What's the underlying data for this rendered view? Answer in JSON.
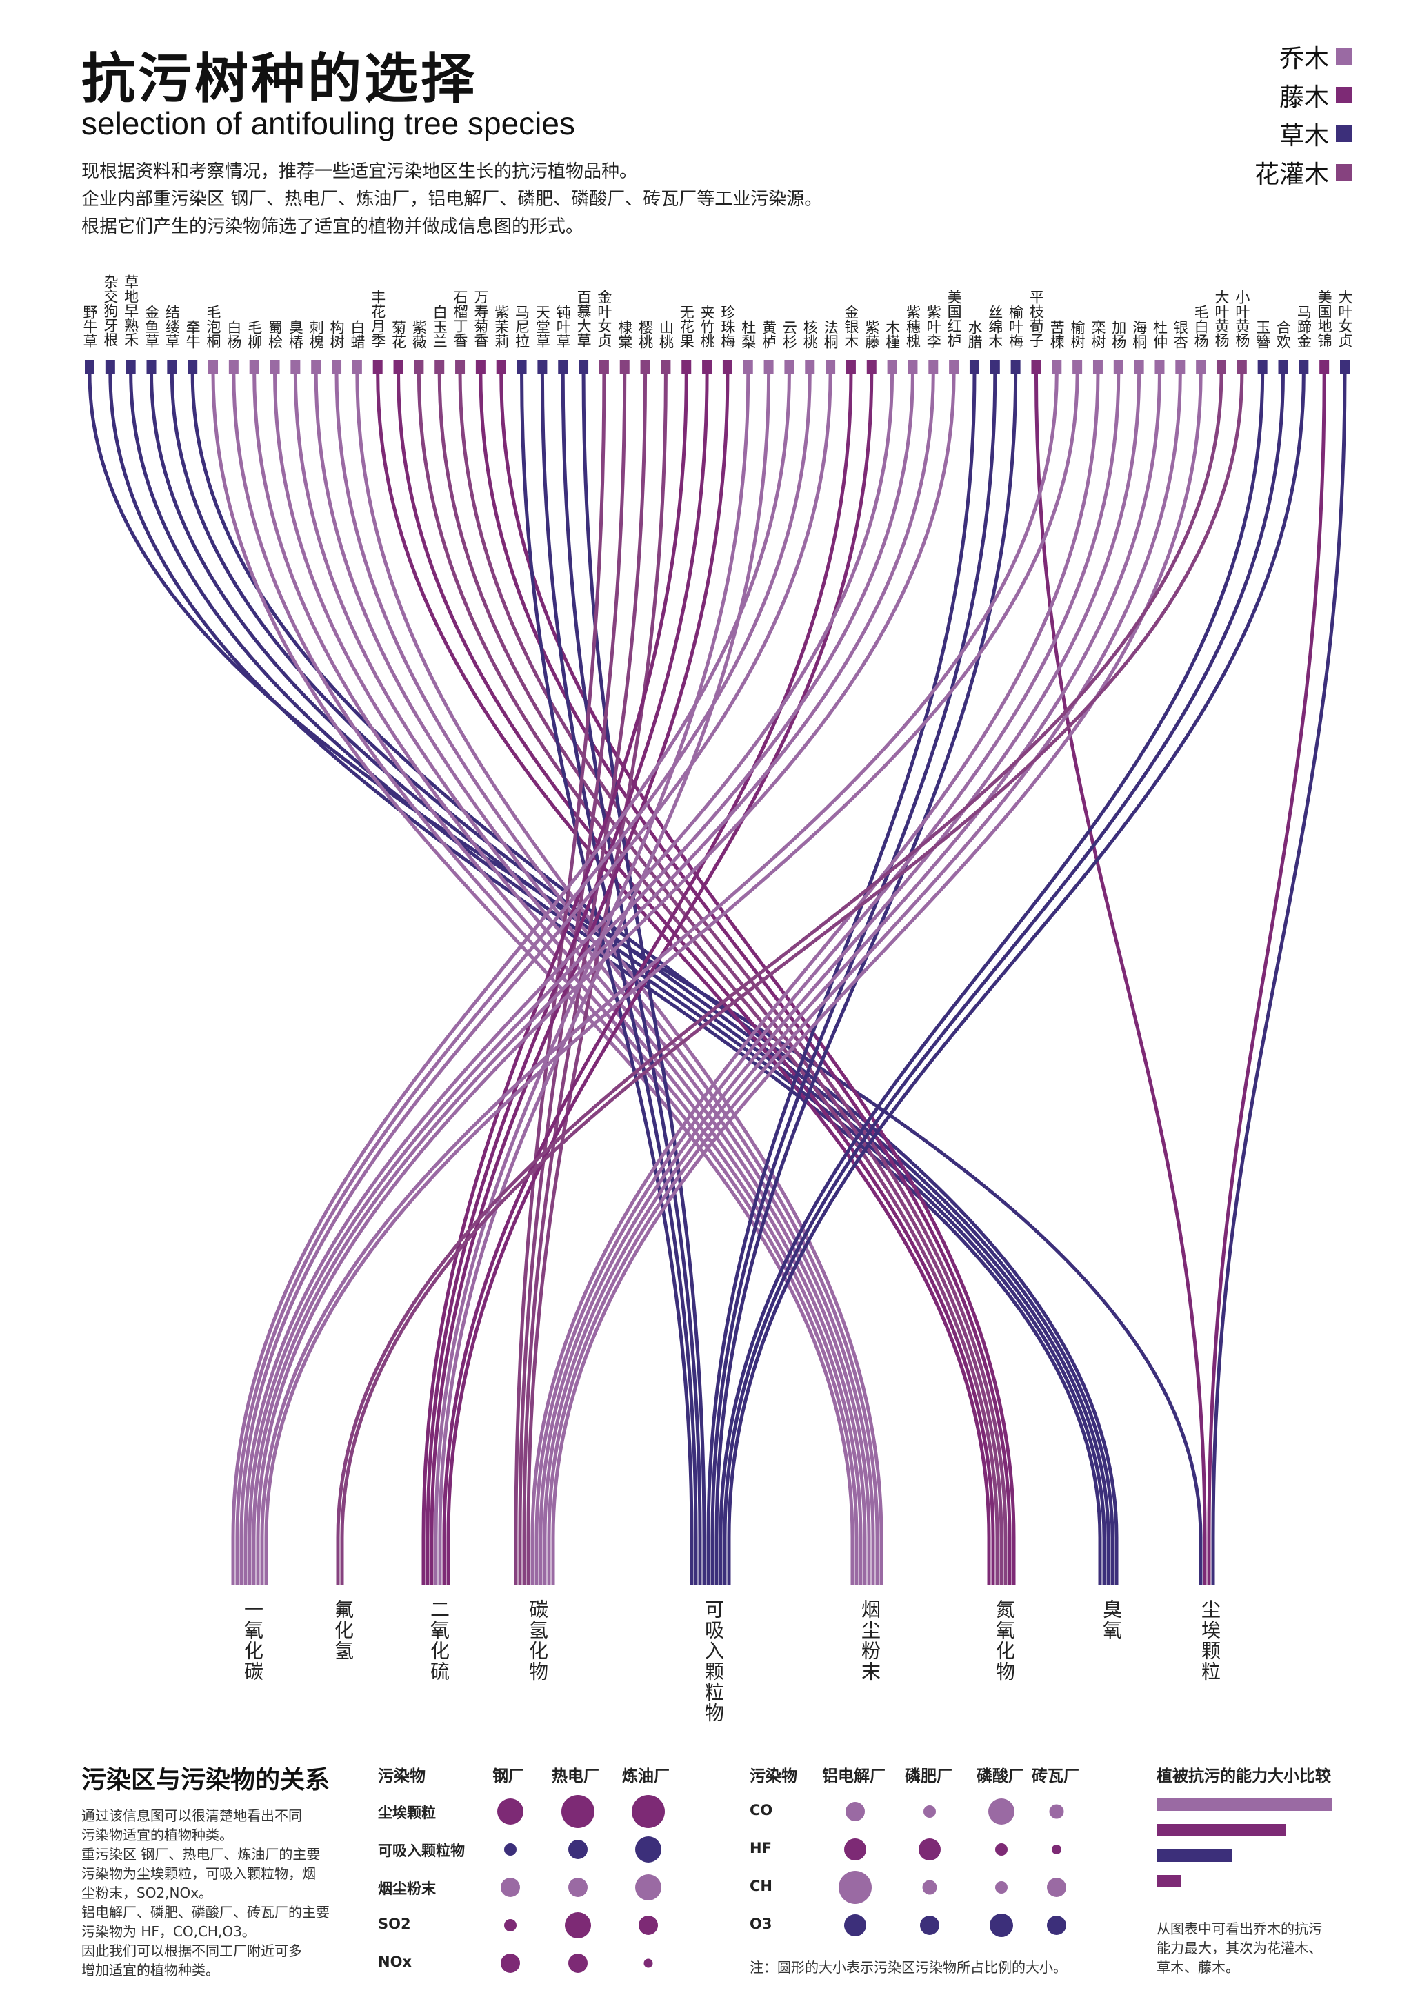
{
  "header": {
    "title": "抗污树种的选择",
    "subtitle": "selection of antifouling tree species",
    "intro_lines": [
      "现根据资料和考察情况，推荐一些适宜污染地区生长的抗污植物品种。",
      "企业内部重污染区 钢厂、热电厂、炼油厂，铝电解厂、磷肥、磷酸厂、砖瓦厂等工业污染源。",
      "根据它们产生的污染物筛选了适宜的植物并做成信息图的形式。"
    ]
  },
  "legend": [
    {
      "label": "乔木",
      "color": "#9a6aa3"
    },
    {
      "label": "藤木",
      "color": "#7d2a75"
    },
    {
      "label": "草木",
      "color": "#3c2f7a"
    },
    {
      "label": "花灌木",
      "color": "#86427f"
    }
  ],
  "chart_data": {
    "type": "flow",
    "plant_types": {
      "tree": "乔木",
      "vine": "藤木",
      "herb": "草木",
      "shrub": "花灌木"
    },
    "plants": [
      {
        "name": "野牛草",
        "type": "herb",
        "pollutant": "尘埃颗粒"
      },
      {
        "name": "杂交狗牙根",
        "type": "herb",
        "pollutant": "臭氧"
      },
      {
        "name": "草地早熟禾",
        "type": "herb",
        "pollutant": "臭氧"
      },
      {
        "name": "金鱼草",
        "type": "herb",
        "pollutant": "臭氧"
      },
      {
        "name": "结缕草",
        "type": "herb",
        "pollutant": "臭氧"
      },
      {
        "name": "牵牛",
        "type": "herb",
        "pollutant": "臭氧"
      },
      {
        "name": "毛泡桐",
        "type": "tree",
        "pollutant": "烟尘粉末"
      },
      {
        "name": "白杨",
        "type": "tree",
        "pollutant": "烟尘粉末"
      },
      {
        "name": "毛柳",
        "type": "tree",
        "pollutant": "烟尘粉末"
      },
      {
        "name": "蜀桧",
        "type": "tree",
        "pollutant": "烟尘粉末"
      },
      {
        "name": "臭椿",
        "type": "tree",
        "pollutant": "烟尘粉末"
      },
      {
        "name": "刺槐",
        "type": "tree",
        "pollutant": "烟尘粉末"
      },
      {
        "name": "构树",
        "type": "tree",
        "pollutant": "烟尘粉末"
      },
      {
        "name": "白蜡",
        "type": "tree",
        "pollutant": "烟尘粉末"
      },
      {
        "name": "丰花月季",
        "type": "vine",
        "pollutant": "氮氧化物"
      },
      {
        "name": "菊花",
        "type": "vine",
        "pollutant": "氮氧化物"
      },
      {
        "name": "紫薇",
        "type": "shrub",
        "pollutant": "氮氧化物"
      },
      {
        "name": "白玉兰",
        "type": "shrub",
        "pollutant": "氮氧化物"
      },
      {
        "name": "石榴丁香",
        "type": "shrub",
        "pollutant": "氮氧化物"
      },
      {
        "name": "万寿菊香",
        "type": "vine",
        "pollutant": "氮氧化物"
      },
      {
        "name": "紫茉莉",
        "type": "vine",
        "pollutant": "氮氧化物"
      },
      {
        "name": "马尼拉",
        "type": "herb",
        "pollutant": "可吸入颗粒物"
      },
      {
        "name": "天堂草",
        "type": "herb",
        "pollutant": "可吸入颗粒物"
      },
      {
        "name": "钝叶草",
        "type": "herb",
        "pollutant": "可吸入颗粒物"
      },
      {
        "name": "百慕大草",
        "type": "herb",
        "pollutant": "可吸入颗粒物"
      },
      {
        "name": "金叶女贞",
        "type": "shrub",
        "pollutant": "碳氢化物"
      },
      {
        "name": "棣棠",
        "type": "shrub",
        "pollutant": "碳氢化物"
      },
      {
        "name": "樱桃",
        "type": "shrub",
        "pollutant": "碳氢化物"
      },
      {
        "name": "山桃",
        "type": "shrub",
        "pollutant": "碳氢化物"
      },
      {
        "name": "无花果",
        "type": "vine",
        "pollutant": "二氧化硫"
      },
      {
        "name": "夹竹桃",
        "type": "vine",
        "pollutant": "二氧化硫"
      },
      {
        "name": "珍珠梅",
        "type": "vine",
        "pollutant": "二氧化硫"
      },
      {
        "name": "杜梨",
        "type": "tree",
        "pollutant": "二氧化硫"
      },
      {
        "name": "黄栌",
        "type": "tree",
        "pollutant": "二氧化硫"
      },
      {
        "name": "云杉",
        "type": "tree",
        "pollutant": "一氧化碳"
      },
      {
        "name": "核桃",
        "type": "tree",
        "pollutant": "一氧化碳"
      },
      {
        "name": "法桐",
        "type": "tree",
        "pollutant": "一氧化碳"
      },
      {
        "name": "金银木",
        "type": "vine",
        "pollutant": "二氧化硫"
      },
      {
        "name": "紫藤",
        "type": "vine",
        "pollutant": "二氧化硫"
      },
      {
        "name": "木槿",
        "type": "tree",
        "pollutant": "一氧化碳"
      },
      {
        "name": "紫穗槐",
        "type": "tree",
        "pollutant": "一氧化碳"
      },
      {
        "name": "紫叶李",
        "type": "tree",
        "pollutant": "一氧化碳"
      },
      {
        "name": "美国红栌",
        "type": "tree",
        "pollutant": "一氧化碳"
      },
      {
        "name": "水腊",
        "type": "herb",
        "pollutant": "可吸入颗粒物"
      },
      {
        "name": "丝绵木",
        "type": "herb",
        "pollutant": "可吸入颗粒物"
      },
      {
        "name": "榆叶梅",
        "type": "herb",
        "pollutant": "可吸入颗粒物"
      },
      {
        "name": "平枝荀子",
        "type": "vine",
        "pollutant": "尘埃颗粒"
      },
      {
        "name": "苦楝",
        "type": "tree",
        "pollutant": "一氧化碳"
      },
      {
        "name": "榆树",
        "type": "tree",
        "pollutant": "一氧化碳"
      },
      {
        "name": "栾树",
        "type": "tree",
        "pollutant": "碳氢化物"
      },
      {
        "name": "加杨",
        "type": "tree",
        "pollutant": "碳氢化物"
      },
      {
        "name": "海桐",
        "type": "tree",
        "pollutant": "碳氢化物"
      },
      {
        "name": "杜仲",
        "type": "tree",
        "pollutant": "碳氢化物"
      },
      {
        "name": "银杏",
        "type": "tree",
        "pollutant": "碳氢化物"
      },
      {
        "name": "毛白杨",
        "type": "tree",
        "pollutant": "碳氢化物"
      },
      {
        "name": "大叶黄杨",
        "type": "shrub",
        "pollutant": "氟化氢"
      },
      {
        "name": "小叶黄杨",
        "type": "shrub",
        "pollutant": "氟化氢"
      },
      {
        "name": "玉簪",
        "type": "herb",
        "pollutant": "可吸入颗粒物"
      },
      {
        "name": "合欢",
        "type": "herb",
        "pollutant": "可吸入颗粒物"
      },
      {
        "name": "马蹄金",
        "type": "herb",
        "pollutant": "可吸入颗粒物"
      },
      {
        "name": "美国地锦",
        "type": "vine",
        "pollutant": "尘埃颗粒"
      },
      {
        "name": "大叶女贞",
        "type": "herb",
        "pollutant": "尘埃颗粒"
      }
    ],
    "pollutants": [
      "一氧化碳",
      "氟化氢",
      "二氧化硫",
      "碳氢化物",
      "可吸入颗粒物",
      "烟尘粉末",
      "氮氧化物",
      "臭氧",
      "尘埃颗粒"
    ]
  },
  "bottom": {
    "section_title": "污染区与污染物的关系",
    "desc": [
      "通过该信息图可以很清楚地看出不同",
      "污染物适宜的植物种类。",
      "重污染区 钢厂、热电厂、炼油厂的主要",
      "污染物为尘埃颗粒，可吸入颗粒物，烟",
      "尘粉末，SO2,NOx。",
      "铝电解厂、磷肥、磷酸厂、砖瓦厂的主要",
      "污染物为 HF，CO,CH,O3。",
      "因此我们可以根据不同工厂附近可多",
      "增加适宜的植物种类。"
    ],
    "table1": {
      "header": "污染物",
      "columns": [
        "钢厂",
        "热电厂",
        "炼油厂"
      ],
      "rows": [
        {
          "label": "尘埃颗粒",
          "sizes": [
            3,
            4,
            4
          ],
          "color": "#7d2a75"
        },
        {
          "label": "可吸入颗粒物",
          "sizes": [
            1,
            2,
            3
          ],
          "color": "#3c2f7a"
        },
        {
          "label": "烟尘粉末",
          "sizes": [
            2,
            2,
            3
          ],
          "color": "#9a6aa3"
        },
        {
          "label": "SO2",
          "sizes": [
            1,
            3,
            2
          ],
          "color": "#7d2a75"
        },
        {
          "label": "NOx",
          "sizes": [
            2,
            2,
            0.5
          ],
          "color": "#7d2a75"
        }
      ]
    },
    "table2": {
      "header": "污染物",
      "columns": [
        "铝电解厂",
        "磷肥厂",
        "磷酸厂",
        "砖瓦厂"
      ],
      "rows": [
        {
          "label": "CO",
          "sizes": [
            2,
            1,
            3,
            1.3
          ],
          "color": "#9a6aa3"
        },
        {
          "label": "HF",
          "sizes": [
            2.4,
            2.4,
            1,
            0.6
          ],
          "color": "#7d2a75"
        },
        {
          "label": "CH",
          "sizes": [
            4,
            1.3,
            1,
            2
          ],
          "color": "#9a6aa3"
        },
        {
          "label": "O3",
          "sizes": [
            2.4,
            2,
            2.6,
            2
          ],
          "color": "#3c2f7a"
        }
      ],
      "note": "注：圆形的大小表示污染区污染物所占比例的大小。"
    },
    "ability": {
      "title": "植被抗污的能力大小比较",
      "bars": [
        {
          "type": "乔木",
          "value": 100,
          "color": "#9a6aa3"
        },
        {
          "type": "花灌木",
          "value": 74,
          "color": "#7d2a75"
        },
        {
          "type": "草木",
          "value": 43,
          "color": "#3c2f7a"
        },
        {
          "type": "藤木",
          "value": 14,
          "color": "#7d2a75"
        }
      ],
      "note_lines": [
        "从图表中可看出乔木的抗污",
        "能力最大，其次为花灌木、",
        "草木、藤木。"
      ]
    }
  }
}
